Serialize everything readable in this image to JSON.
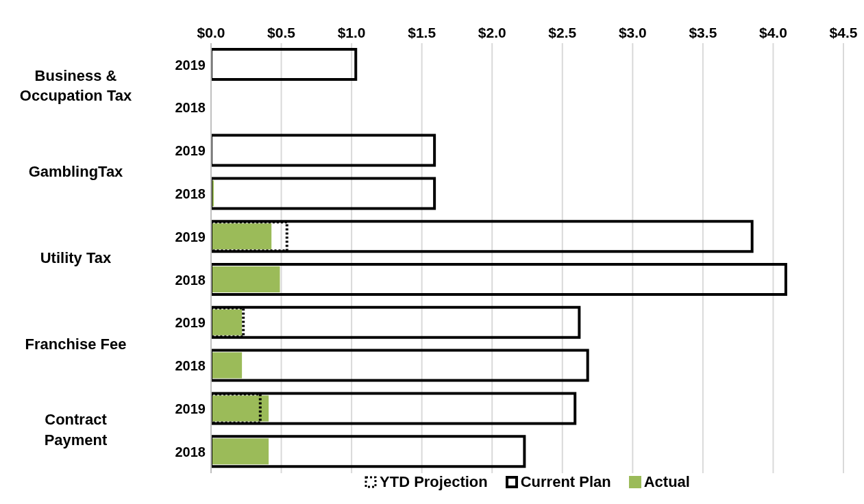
{
  "chart_data": {
    "type": "bar",
    "orientation": "horizontal",
    "categories": [
      "2019",
      "2018",
      "2019",
      "2018",
      "2019",
      "2018",
      "2019",
      "2018",
      "2019",
      "2018"
    ],
    "annotations": [
      "Business &\nOccupation Tax",
      "GamblingTax",
      "Utility Tax",
      "Franchise Fee",
      "Contract\nPayment"
    ],
    "series": [
      {
        "name": "YTD Projection",
        "color": "#000000",
        "line_style": "dotted",
        "values": [
          null,
          null,
          null,
          null,
          0.54,
          null,
          0.23,
          null,
          0.35,
          null
        ]
      },
      {
        "name": "Current Plan",
        "color": "#000000",
        "line_style": "solid",
        "values": [
          1.03,
          null,
          1.59,
          1.59,
          3.85,
          4.09,
          2.62,
          2.68,
          2.59,
          2.23
        ]
      },
      {
        "name": "Actual",
        "color": "#9bbb59",
        "values": [
          null,
          null,
          null,
          0.02,
          0.43,
          0.49,
          0.22,
          0.22,
          0.41,
          0.41
        ]
      }
    ],
    "xlim": [
      0,
      4.5
    ],
    "xticks": [
      {
        "value": 0,
        "label": "$0.0"
      },
      {
        "value": 0.5,
        "label": "$0.5"
      },
      {
        "value": 1,
        "label": "$1.0"
      },
      {
        "value": 1.5,
        "label": "$1.5"
      },
      {
        "value": 2,
        "label": "$2.0"
      },
      {
        "value": 2.5,
        "label": "$2.5"
      },
      {
        "value": 3,
        "label": "$3.0"
      },
      {
        "value": 3.5,
        "label": "$3.5"
      },
      {
        "value": 4,
        "label": "$4.0"
      },
      {
        "value": 4.5,
        "label": "$4.5"
      }
    ],
    "grid": "x",
    "legend": "bottom"
  }
}
